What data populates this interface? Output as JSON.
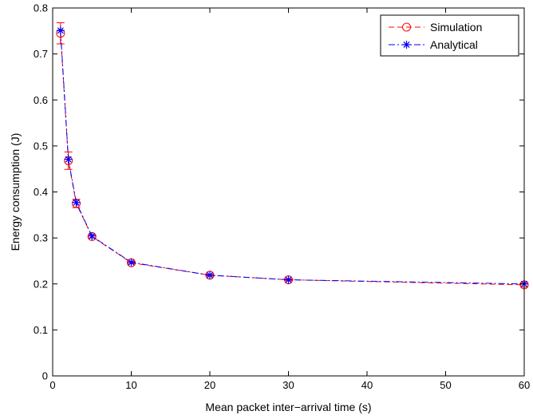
{
  "chart_data": {
    "type": "line",
    "title": "",
    "xlabel": "Mean packet inter−arrival time (s)",
    "ylabel": "Energy consumption (J)",
    "xlim": [
      0,
      60
    ],
    "ylim": [
      0,
      0.8
    ],
    "xticks": [
      0,
      10,
      20,
      30,
      40,
      50,
      60
    ],
    "xtick_labels": [
      "0",
      "10",
      "20",
      "30",
      "40",
      "50",
      "60"
    ],
    "yticks": [
      0,
      0.1,
      0.2,
      0.3,
      0.4,
      0.5,
      0.6,
      0.7,
      0.8
    ],
    "ytick_labels": [
      "0",
      "0.1",
      "0.2",
      "0.3",
      "0.4",
      "0.5",
      "0.6",
      "0.7",
      "0.8"
    ],
    "grid": false,
    "legend_position": "top-right",
    "series": [
      {
        "name": "Simulation",
        "color": "#ff0000",
        "line_style": "dashed",
        "marker": "circle",
        "x": [
          1,
          2,
          3,
          5,
          10,
          20,
          30,
          60
        ],
        "y": [
          0.745,
          0.468,
          0.375,
          0.303,
          0.246,
          0.219,
          0.209,
          0.198
        ],
        "error_low": [
          0.722,
          0.449,
          0.366,
          0.3,
          0.244,
          0.217,
          0.207,
          0.193
        ],
        "error_high": [
          0.768,
          0.487,
          0.384,
          0.306,
          0.249,
          0.221,
          0.211,
          0.203
        ]
      },
      {
        "name": "Analytical",
        "color": "#0000ff",
        "line_style": "dash-dot",
        "marker": "asterisk",
        "x": [
          1,
          2,
          3,
          5,
          10,
          20,
          30,
          60
        ],
        "y": [
          0.751,
          0.471,
          0.377,
          0.304,
          0.247,
          0.219,
          0.209,
          0.2
        ]
      }
    ]
  }
}
